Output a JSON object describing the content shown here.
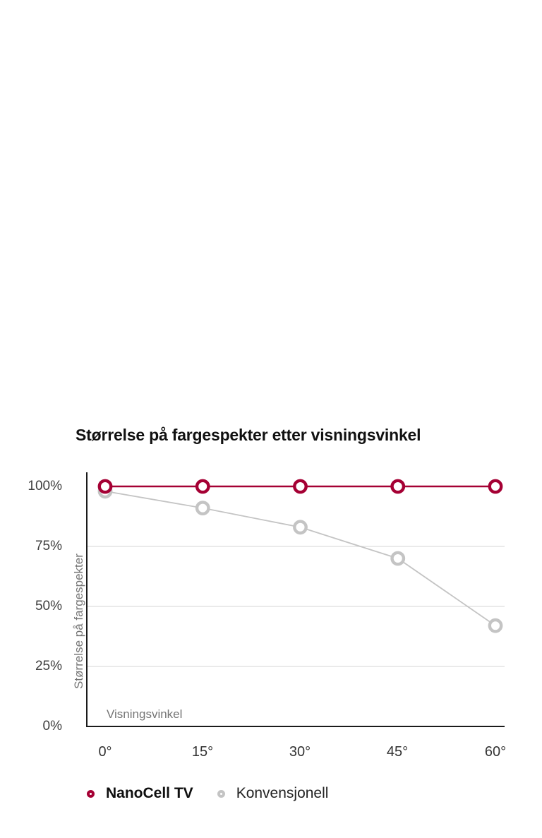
{
  "page": {
    "background": "#ffffff"
  },
  "colors": {
    "accent_red": "#a50034",
    "conventional_gray": "#c4c4c4",
    "gridline": "#e3e3e3",
    "axis": "#1b1b1b"
  },
  "chart_data": {
    "type": "line",
    "title": "Størrelse på fargespekter etter visningsvinkel",
    "xlabel": "Visningsvinkel",
    "ylabel": "Størrelse på fargespekter",
    "x_tick_labels": [
      "0°",
      "15°",
      "30°",
      "45°",
      "60°"
    ],
    "x_values_degrees": [
      0,
      15,
      30,
      45,
      60
    ],
    "y_tick_labels": [
      "100%",
      "75%",
      "50%",
      "25%",
      "0%"
    ],
    "ylim": [
      0,
      100
    ],
    "gridlines_pct": [
      25,
      50,
      75
    ],
    "grid": "horizontal-only",
    "legend_position": "bottom-left",
    "series": [
      {
        "name": "NanoCell TV",
        "color": "#a50034",
        "values": [
          100,
          100,
          100,
          100,
          100
        ]
      },
      {
        "name": "Konvensjonell",
        "color": "#c4c4c4",
        "values": [
          98,
          91,
          83,
          70,
          42
        ]
      }
    ]
  }
}
